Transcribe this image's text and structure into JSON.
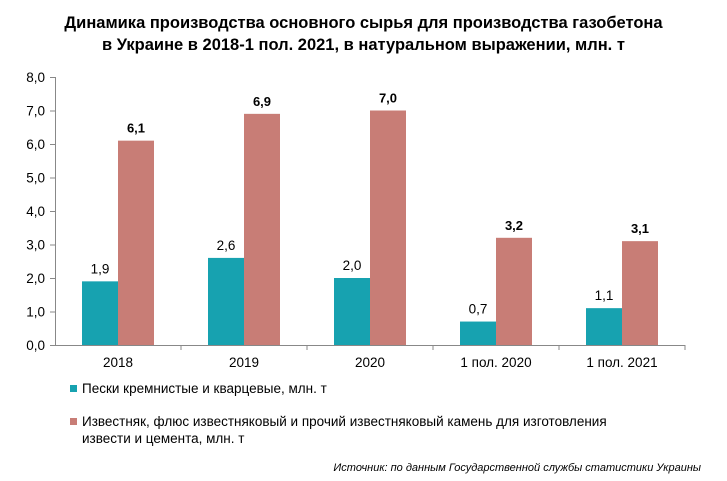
{
  "chart_data": {
    "type": "bar",
    "title_lines": [
      "Динамика производства основного сырья для производства газобетона",
      "в Украине в 2018-1 пол. 2021, в натуральном выражении, млн. т"
    ],
    "xlabel": "",
    "ylabel": "",
    "ylim": [
      0,
      8
    ],
    "ytick_values": [
      0,
      1,
      2,
      3,
      4,
      5,
      6,
      7,
      8
    ],
    "ytick_labels": [
      "0,0",
      "1,0",
      "2,0",
      "3,0",
      "4,0",
      "5,0",
      "6,0",
      "7,0",
      "8,0"
    ],
    "categories": [
      "2018",
      "2019",
      "2020",
      "1 пол. 2020",
      "1 пол. 2021"
    ],
    "grid": false,
    "legend_position": "bottom",
    "series": [
      {
        "name": "Пески кремнистые и кварцевые, млн. т",
        "color": "#17a2b0",
        "values": [
          1.9,
          2.6,
          2.0,
          0.7,
          1.1
        ],
        "data_labels": [
          "1,9",
          "2,6",
          "2,0",
          "0,7",
          "1,1"
        ],
        "label_bold": false
      },
      {
        "name": "Известняк, флюс известняковый и прочий известняковый камень для изготовления извести и цемента, млн. т",
        "color": "#c87d76",
        "values": [
          6.1,
          6.9,
          7.0,
          3.2,
          3.1
        ],
        "data_labels": [
          "6,1",
          "6,9",
          "7,0",
          "3,2",
          "3,1"
        ],
        "label_bold": true
      }
    ]
  },
  "legend": {
    "item1": "Пески кремнистые и кварцевые, млн.  т",
    "item2_line1": "Известняк, флюс известняковый и прочий известняковый камень для изготовления",
    "item2_line2": "извести и цемента, млн. т"
  },
  "source": "Источник: по данным Государственной службы статистики Украины"
}
